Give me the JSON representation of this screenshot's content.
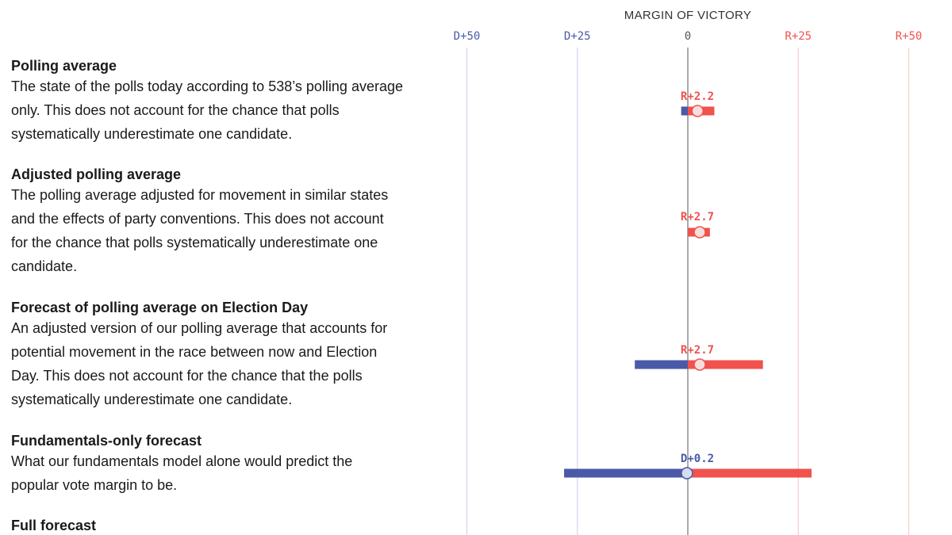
{
  "colors": {
    "dem": "#4a5aa8",
    "rep": "#f0524d",
    "grid_dem": "#d3d6ec",
    "grid_rep": "#f6cccc",
    "zero_line": "#555555",
    "marker_fill": "#f7dede",
    "marker_fill_dem": "#d9dcf0"
  },
  "chart_data": {
    "type": "range",
    "title": "MARGIN OF VICTORY",
    "xlim": [
      -50,
      50
    ],
    "ticks": [
      {
        "value": -50,
        "label": "D+50",
        "party": "dem"
      },
      {
        "value": -25,
        "label": "D+25",
        "party": "dem"
      },
      {
        "value": 0,
        "label": "0",
        "party": "neutral"
      },
      {
        "value": 25,
        "label": "R+25",
        "party": "rep"
      },
      {
        "value": 50,
        "label": "R+50",
        "party": "rep"
      }
    ],
    "rows": [
      {
        "name": "Polling average",
        "value": 2.2,
        "low": -1.5,
        "high": 6,
        "label": "R+2.2",
        "party": "rep"
      },
      {
        "name": "Adjusted polling average",
        "value": 2.7,
        "low": 0,
        "high": 5,
        "label": "R+2.7",
        "party": "rep"
      },
      {
        "name": "Forecast of polling average on Election Day",
        "value": 2.7,
        "low": -12,
        "high": 17,
        "label": "R+2.7",
        "party": "rep"
      },
      {
        "name": "Fundamentals-only forecast",
        "value": -0.2,
        "low": -28,
        "high": 28,
        "label": "D+0.2",
        "party": "dem"
      }
    ]
  },
  "rows": [
    {
      "title": "Polling average",
      "lines": [
        "The state of the polls today according to 538’s polling average",
        "only. This does not account for the chance that polls",
        "systematically underestimate one candidate."
      ]
    },
    {
      "title": "Adjusted polling average",
      "lines": [
        "The polling average adjusted for movement in similar states",
        "and the effects of party conventions. This does not account",
        "for the chance that polls systematically underestimate one",
        "candidate."
      ]
    },
    {
      "title": "Forecast of polling average on Election Day",
      "lines": [
        "An adjusted version of our polling average that accounts for",
        "potential movement in the race between now and Election",
        "Day. This does not account for the chance that the polls",
        "systematically underestimate one candidate."
      ]
    },
    {
      "title": "Fundamentals-only forecast",
      "lines": [
        "What our fundamentals model alone would predict the",
        "popular vote margin to be."
      ]
    },
    {
      "title": "Full forecast",
      "lines": []
    }
  ]
}
